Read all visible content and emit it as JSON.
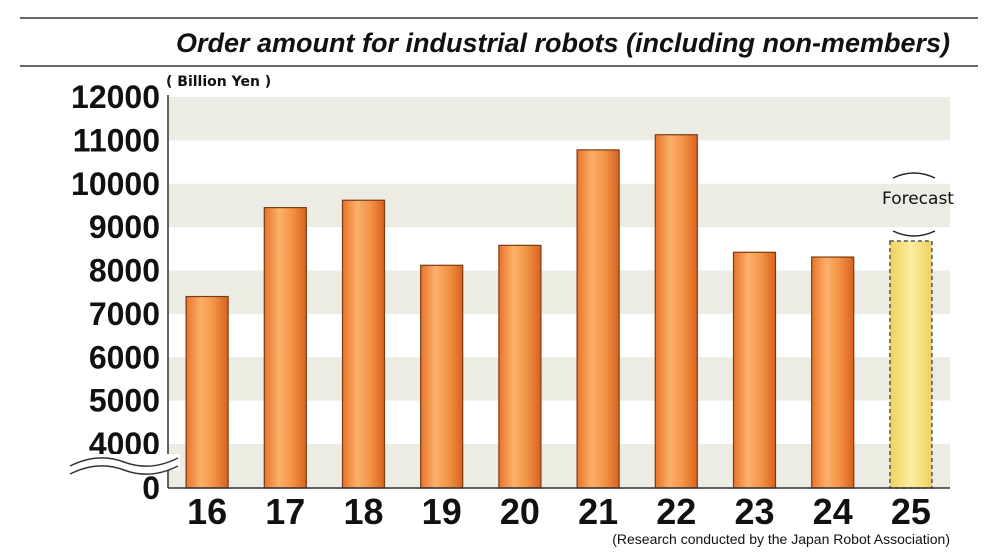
{
  "chart_data": {
    "type": "bar",
    "title": "Order amount for industrial robots (including non-members)",
    "unit_label": "( Billion Yen )",
    "source": "(Research conducted by the Japan Robot Association)",
    "forecast_label": "Forecast",
    "categories": [
      "16",
      "17",
      "18",
      "19",
      "20",
      "21",
      "22",
      "23",
      "24",
      "25"
    ],
    "values": [
      7400,
      9450,
      9620,
      8120,
      8580,
      10780,
      11130,
      8420,
      8310,
      8680
    ],
    "forecast_flags": [
      false,
      false,
      false,
      false,
      false,
      false,
      false,
      false,
      false,
      true
    ],
    "ylim": [
      4000,
      12000
    ],
    "y_axis_break": true,
    "ytick_labels": [
      "0",
      "4000",
      "5000",
      "6000",
      "7000",
      "8000",
      "9000",
      "10000",
      "11000",
      "12000"
    ],
    "grid": "horizontal alternating bands",
    "colors": {
      "bar": "#f08a3a",
      "bar_stroke": "#7a3a12",
      "forecast_bar": "#f5e27a",
      "band": "#ecebe4",
      "rule": "#333333"
    }
  }
}
